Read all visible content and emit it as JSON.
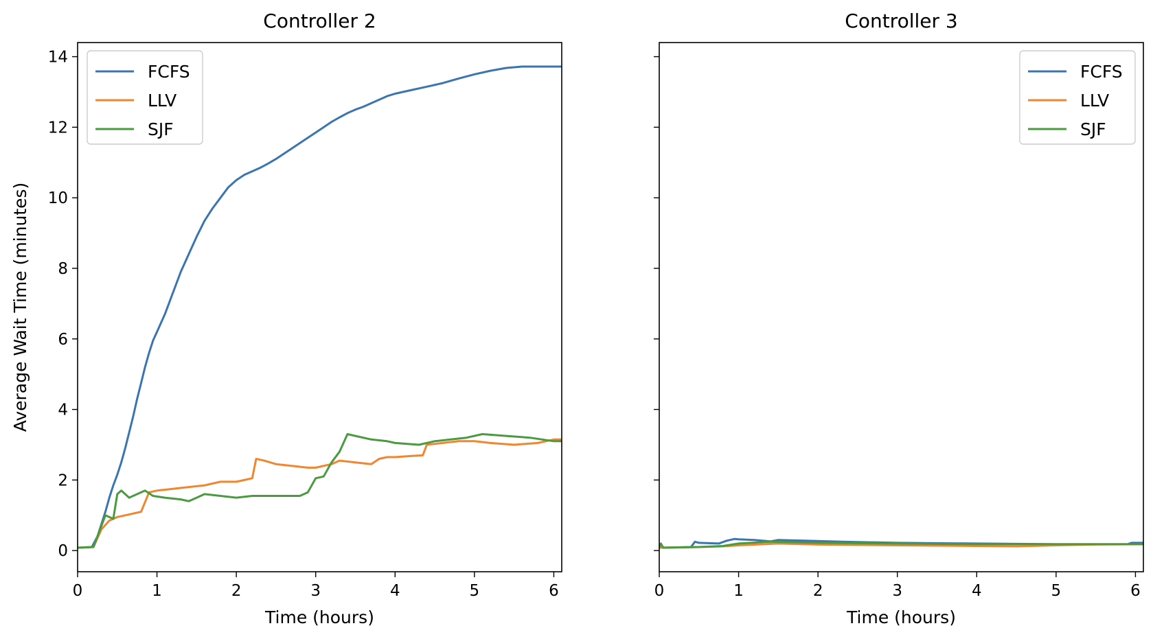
{
  "chart_data": [
    {
      "type": "line",
      "title": "Controller 2",
      "xlabel": "Time (hours)",
      "ylabel": "Average Wait Time (minutes)",
      "xlim": [
        0,
        6.1
      ],
      "ylim": [
        -0.6,
        14.4
      ],
      "xticks": [
        0,
        1,
        2,
        3,
        4,
        5,
        6
      ],
      "yticks": [
        0,
        2,
        4,
        6,
        8,
        10,
        12,
        14
      ],
      "legend_position": "upper-left",
      "series": [
        {
          "name": "FCFS",
          "color": "#3a75af",
          "x": [
            0,
            0.18,
            0.25,
            0.3,
            0.35,
            0.4,
            0.45,
            0.5,
            0.55,
            0.6,
            0.65,
            0.7,
            0.75,
            0.8,
            0.85,
            0.9,
            0.95,
            1.0,
            1.1,
            1.2,
            1.3,
            1.4,
            1.5,
            1.6,
            1.7,
            1.8,
            1.9,
            2.0,
            2.1,
            2.2,
            2.3,
            2.4,
            2.5,
            2.6,
            2.7,
            2.8,
            2.9,
            3.0,
            3.1,
            3.2,
            3.3,
            3.4,
            3.5,
            3.6,
            3.7,
            3.8,
            3.9,
            4.0,
            4.2,
            4.4,
            4.6,
            4.8,
            5.0,
            5.2,
            5.4,
            5.6,
            5.8,
            5.95,
            6.1
          ],
          "y": [
            0.08,
            0.1,
            0.4,
            0.75,
            1.1,
            1.5,
            1.85,
            2.15,
            2.5,
            2.9,
            3.35,
            3.8,
            4.3,
            4.75,
            5.2,
            5.6,
            5.95,
            6.2,
            6.7,
            7.3,
            7.9,
            8.4,
            8.9,
            9.35,
            9.7,
            10.0,
            10.3,
            10.5,
            10.65,
            10.75,
            10.85,
            10.97,
            11.1,
            11.25,
            11.4,
            11.55,
            11.7,
            11.85,
            12.0,
            12.15,
            12.28,
            12.4,
            12.5,
            12.58,
            12.68,
            12.78,
            12.88,
            12.95,
            13.05,
            13.15,
            13.25,
            13.38,
            13.5,
            13.6,
            13.68,
            13.72,
            13.72,
            13.72,
            13.72
          ]
        },
        {
          "name": "LLV",
          "color": "#f0862f",
          "x": [
            0,
            0.2,
            0.3,
            0.4,
            0.5,
            0.6,
            0.7,
            0.8,
            0.9,
            1.0,
            1.2,
            1.4,
            1.6,
            1.8,
            2.0,
            2.1,
            2.2,
            2.25,
            2.35,
            2.5,
            2.7,
            2.9,
            3.0,
            3.2,
            3.3,
            3.5,
            3.7,
            3.8,
            3.9,
            4.0,
            4.2,
            4.35,
            4.4,
            4.6,
            4.8,
            5.0,
            5.2,
            5.5,
            5.8,
            6.0,
            6.1
          ],
          "y": [
            0.08,
            0.1,
            0.6,
            0.85,
            0.95,
            1.0,
            1.05,
            1.1,
            1.65,
            1.7,
            1.75,
            1.8,
            1.85,
            1.95,
            1.95,
            2.0,
            2.05,
            2.6,
            2.55,
            2.45,
            2.4,
            2.35,
            2.35,
            2.45,
            2.55,
            2.5,
            2.45,
            2.6,
            2.65,
            2.65,
            2.68,
            2.7,
            3.0,
            3.05,
            3.1,
            3.1,
            3.05,
            3.0,
            3.05,
            3.15,
            3.15
          ]
        },
        {
          "name": "SJF",
          "color": "#4a9a3f",
          "x": [
            0,
            0.2,
            0.3,
            0.35,
            0.45,
            0.5,
            0.55,
            0.65,
            0.75,
            0.85,
            0.95,
            1.1,
            1.3,
            1.4,
            1.5,
            1.6,
            1.8,
            2.0,
            2.2,
            2.5,
            2.8,
            2.9,
            3.0,
            3.1,
            3.2,
            3.3,
            3.4,
            3.5,
            3.7,
            3.9,
            4.0,
            4.3,
            4.5,
            4.7,
            4.9,
            5.1,
            5.4,
            5.7,
            6.0,
            6.1
          ],
          "y": [
            0.08,
            0.1,
            0.7,
            1.0,
            0.9,
            1.6,
            1.7,
            1.5,
            1.6,
            1.7,
            1.55,
            1.5,
            1.45,
            1.4,
            1.5,
            1.6,
            1.55,
            1.5,
            1.55,
            1.55,
            1.55,
            1.65,
            2.05,
            2.1,
            2.5,
            2.8,
            3.3,
            3.25,
            3.15,
            3.1,
            3.05,
            3.0,
            3.1,
            3.15,
            3.2,
            3.3,
            3.25,
            3.2,
            3.1,
            3.1
          ]
        }
      ]
    },
    {
      "type": "line",
      "title": "Controller 3",
      "xlabel": "Time (hours)",
      "ylabel": "",
      "xlim": [
        0,
        6.1
      ],
      "ylim": [
        -0.6,
        14.4
      ],
      "xticks": [
        0,
        1,
        2,
        3,
        4,
        5,
        6
      ],
      "yticks": [
        0,
        2,
        4,
        6,
        8,
        10,
        12,
        14
      ],
      "shared_y": true,
      "legend_position": "upper-right",
      "series": [
        {
          "name": "FCFS",
          "color": "#3a75af",
          "x": [
            0,
            0.02,
            0.05,
            0.4,
            0.45,
            0.5,
            0.75,
            0.85,
            0.95,
            1.0,
            1.2,
            1.4,
            1.5,
            2.0,
            2.3,
            3.0,
            4.0,
            5.0,
            5.5,
            5.9,
            5.95,
            6.1
          ],
          "y": [
            0.08,
            0.2,
            0.08,
            0.1,
            0.25,
            0.22,
            0.2,
            0.28,
            0.33,
            0.32,
            0.3,
            0.26,
            0.3,
            0.27,
            0.25,
            0.22,
            0.2,
            0.18,
            0.18,
            0.18,
            0.22,
            0.22
          ]
        },
        {
          "name": "LLV",
          "color": "#f0862f",
          "x": [
            0,
            0.5,
            0.8,
            1.0,
            1.5,
            2.0,
            3.0,
            4.0,
            4.5,
            5.0,
            5.5,
            6.1
          ],
          "y": [
            0.08,
            0.1,
            0.12,
            0.15,
            0.2,
            0.17,
            0.15,
            0.13,
            0.12,
            0.15,
            0.17,
            0.18
          ]
        },
        {
          "name": "SJF",
          "color": "#4a9a3f",
          "x": [
            0,
            0.02,
            0.05,
            0.5,
            0.8,
            1.0,
            1.4,
            2.0,
            3.0,
            4.0,
            5.0,
            6.1
          ],
          "y": [
            0.08,
            0.2,
            0.08,
            0.1,
            0.13,
            0.2,
            0.25,
            0.22,
            0.2,
            0.18,
            0.18,
            0.18
          ]
        }
      ]
    }
  ]
}
